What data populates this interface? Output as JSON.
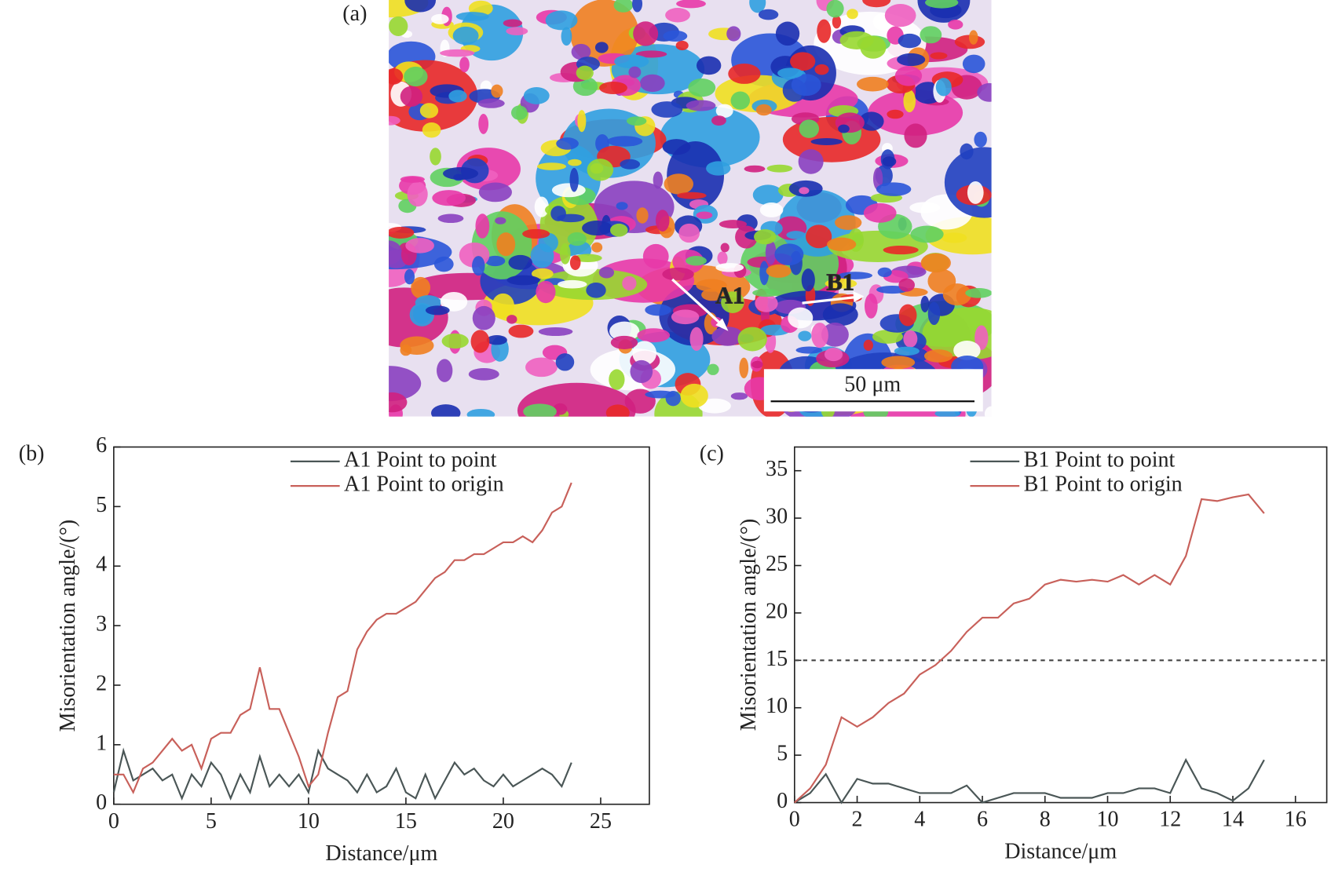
{
  "panel_a": {
    "label": "(a)",
    "annotations": [
      "A1",
      "B1"
    ],
    "scale_bar": "50 μm"
  },
  "chart_data": [
    {
      "type": "line",
      "panel_label": "(b)",
      "xlabel": "Distance/μm",
      "ylabel": "Misorientation angle/(°)",
      "xlim": [
        0,
        27.5
      ],
      "xticks": [
        0,
        5,
        10,
        15,
        20,
        25
      ],
      "ylim": [
        0,
        6
      ],
      "yticks": [
        0,
        1,
        2,
        3,
        4,
        5,
        6
      ],
      "legend": "upper center",
      "x": [
        0,
        0.5,
        1,
        1.5,
        2,
        2.5,
        3,
        3.5,
        4,
        4.5,
        5,
        5.5,
        6,
        6.5,
        7,
        7.5,
        8,
        8.5,
        9,
        9.5,
        10,
        10.5,
        11,
        11.5,
        12,
        12.5,
        13,
        13.5,
        14,
        14.5,
        15,
        15.5,
        16,
        16.5,
        17,
        17.5,
        18,
        18.5,
        19,
        19.5,
        20,
        20.5,
        21,
        21.5,
        22,
        22.5,
        23,
        23.5
      ],
      "series": [
        {
          "name": "A1 Point to point",
          "color": "#4a5656",
          "values": [
            0.2,
            0.9,
            0.4,
            0.5,
            0.6,
            0.4,
            0.5,
            0.1,
            0.5,
            0.3,
            0.7,
            0.5,
            0.1,
            0.5,
            0.2,
            0.8,
            0.3,
            0.5,
            0.3,
            0.5,
            0.2,
            0.9,
            0.6,
            0.5,
            0.4,
            0.2,
            0.5,
            0.2,
            0.3,
            0.6,
            0.2,
            0.1,
            0.5,
            0.1,
            0.4,
            0.7,
            0.5,
            0.6,
            0.4,
            0.3,
            0.5,
            0.3,
            0.4,
            0.5,
            0.6,
            0.5,
            0.3,
            0.7
          ]
        },
        {
          "name": "A1 Point to origin",
          "color": "#c8605a",
          "values": [
            0.5,
            0.5,
            0.2,
            0.6,
            0.7,
            0.9,
            1.1,
            0.9,
            1.0,
            0.6,
            1.1,
            1.2,
            1.2,
            1.5,
            1.6,
            2.3,
            1.6,
            1.6,
            1.2,
            0.8,
            0.3,
            0.5,
            1.2,
            1.8,
            1.9,
            2.6,
            2.9,
            3.1,
            3.2,
            3.2,
            3.3,
            3.4,
            3.6,
            3.8,
            3.9,
            4.1,
            4.1,
            4.2,
            4.2,
            4.3,
            4.4,
            4.4,
            4.5,
            4.4,
            4.6,
            4.9,
            5.0,
            5.4
          ]
        }
      ]
    },
    {
      "type": "line",
      "panel_label": "(c)",
      "xlabel": "Distance/μm",
      "ylabel": "Misorientation angle/(°)",
      "xlim": [
        0,
        17
      ],
      "xticks": [
        0,
        2,
        4,
        6,
        8,
        10,
        12,
        14,
        16
      ],
      "ylim": [
        0,
        37.5
      ],
      "yticks": [
        0,
        5,
        10,
        15,
        20,
        25,
        30,
        35
      ],
      "legend": "upper center",
      "hline": 15,
      "x": [
        0,
        0.5,
        1,
        1.5,
        2,
        2.5,
        3,
        3.5,
        4,
        4.5,
        5,
        5.5,
        6,
        6.5,
        7,
        7.5,
        8,
        8.5,
        9,
        9.5,
        10,
        10.5,
        11,
        11.5,
        12,
        12.5,
        13,
        13.5,
        14,
        14.5,
        15
      ],
      "series": [
        {
          "name": "B1 Point to point",
          "color": "#4a5656",
          "values": [
            0,
            1,
            3,
            0,
            2.5,
            2,
            2,
            1.5,
            1,
            1,
            1,
            1.8,
            0,
            0.5,
            1,
            1,
            1,
            0.5,
            0.5,
            0.5,
            1,
            1,
            1.5,
            1.5,
            1,
            4.5,
            1.5,
            1,
            0.2,
            1.5,
            4.5
          ]
        },
        {
          "name": "B1 Point to origin",
          "color": "#c8605a",
          "values": [
            0,
            1.5,
            4,
            9,
            8,
            9,
            10.5,
            11.5,
            13.5,
            14.5,
            16,
            18,
            19.5,
            19.5,
            21,
            21.5,
            23,
            23.5,
            23.3,
            23.5,
            23.3,
            24,
            23,
            24,
            23,
            26,
            32,
            31.8,
            32.2,
            32.5,
            30.5
          ]
        }
      ]
    }
  ]
}
